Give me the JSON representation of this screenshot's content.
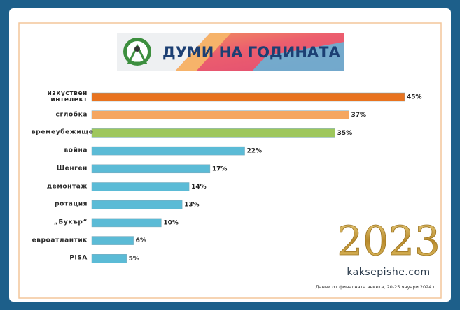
{
  "chart_data": {
    "type": "bar",
    "orientation": "horizontal",
    "title": "ДУМИ НА ГОДИНАТА",
    "categories": [
      "изкуствен интелект",
      "сглобка",
      "времеубежище",
      "война",
      "Шенген",
      "демонтаж",
      "ротация",
      "„Букър“",
      "евроатлантик",
      "PISA"
    ],
    "values": [
      45,
      37,
      35,
      22,
      17,
      14,
      13,
      10,
      6,
      5
    ],
    "value_labels": [
      "45%",
      "37%",
      "35%",
      "22%",
      "17%",
      "14%",
      "13%",
      "10%",
      "6%",
      "5%"
    ],
    "colors": [
      "#e8731f",
      "#f5a660",
      "#9ec75c",
      "#5bbbd6",
      "#5bbbd6",
      "#5bbbd6",
      "#5bbbd6",
      "#5bbbd6",
      "#5bbbd6",
      "#5bbbd6"
    ]
  },
  "year": "2023",
  "site": "kaksepishe.com",
  "footnote": "Данни от финалната анкета, 20-25 януари 2024 г."
}
